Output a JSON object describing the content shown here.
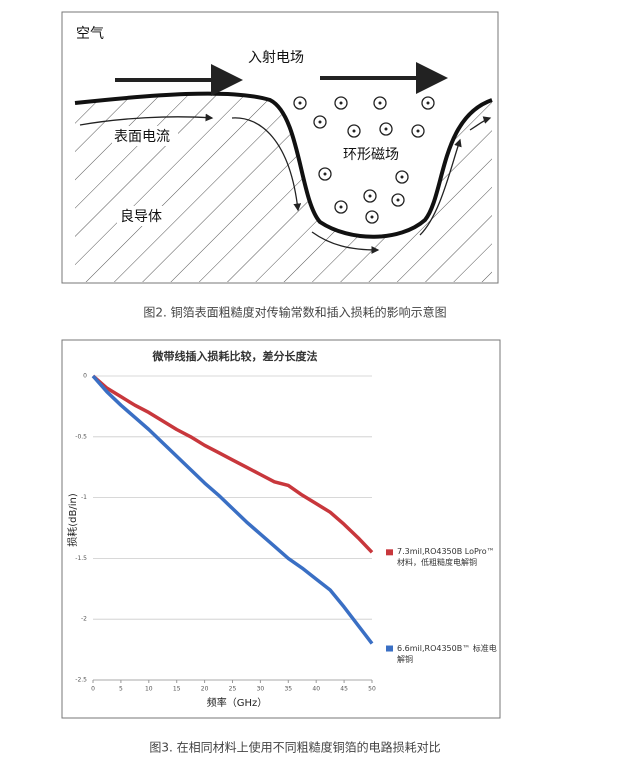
{
  "figure1": {
    "labels": {
      "air": "空气",
      "field": "入射电场",
      "current": "表面电流",
      "magnetic": "环形磁场",
      "conductor": "良导体"
    },
    "caption": "图2. 铜箔表面粗糙度对传输常数和插入损耗的影响示意图"
  },
  "chart_data": {
    "type": "line",
    "title": "微带线插入损耗比较，差分长度法",
    "x_label": "频率（GHz）",
    "y_label": "损耗(dB/in)",
    "x": [
      0,
      2.5,
      5,
      7.5,
      10,
      12.5,
      15,
      17.5,
      20,
      22.5,
      25,
      27.5,
      30,
      32.5,
      35,
      37.5,
      40,
      42.5,
      45,
      47.5,
      50
    ],
    "series": [
      {
        "name": "7.3mil,RO4350B LoPro™ 材料，低粗糙度电解铜",
        "color": "#c8373c",
        "values": [
          0,
          -0.1,
          -0.17,
          -0.24,
          -0.3,
          -0.37,
          -0.44,
          -0.5,
          -0.57,
          -0.63,
          -0.69,
          -0.75,
          -0.81,
          -0.87,
          -0.9,
          -0.98,
          -1.05,
          -1.12,
          -1.22,
          -1.33,
          -1.45
        ]
      },
      {
        "name": "6.6mil,RO4350B™ 标准电解铜",
        "color": "#3a6fc4",
        "values": [
          0,
          -0.13,
          -0.24,
          -0.34,
          -0.44,
          -0.55,
          -0.66,
          -0.77,
          -0.88,
          -0.98,
          -1.09,
          -1.2,
          -1.3,
          -1.4,
          -1.5,
          -1.58,
          -1.67,
          -1.76,
          -1.9,
          -2.05,
          -2.2
        ]
      }
    ],
    "xlim": [
      0,
      50
    ],
    "xticks": [
      0,
      5,
      10,
      15,
      20,
      25,
      30,
      35,
      40,
      45,
      50
    ],
    "ylim": [
      -2.5,
      0
    ],
    "yticks": [
      0,
      -0.5,
      -1,
      -1.5,
      -2,
      -2.5
    ],
    "grid": true,
    "caption": "图3. 在相同材料上使用不同粗糙度铜箔的电路损耗对比"
  }
}
